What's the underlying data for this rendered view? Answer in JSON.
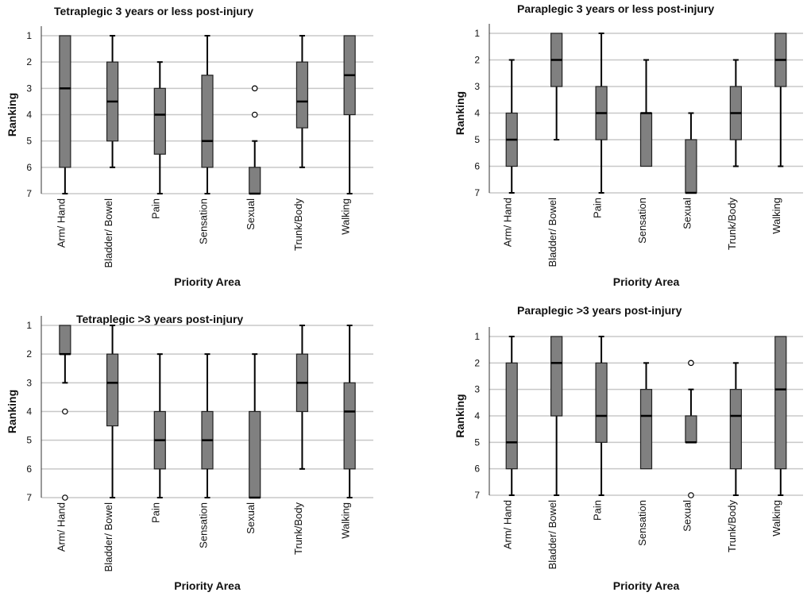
{
  "chart_data": [
    {
      "type": "box",
      "title": "Tetraplegic 3 years or less post-injury",
      "xlabel": "Priority Area",
      "ylabel": "Ranking",
      "y_ticks": [
        "1",
        "2",
        "3",
        "4",
        "5",
        "6",
        "7"
      ],
      "ylim": [
        7,
        1
      ],
      "categories": [
        "Arm/ Hand",
        "Bladder/ Bowel",
        "Pain",
        "Sensation",
        "Sexual",
        "Trunk/Body",
        "Walking"
      ],
      "boxes": [
        {
          "whisker_low": 1,
          "q1": 1,
          "median": 3,
          "q3": 6,
          "whisker_high": 7,
          "outliers": []
        },
        {
          "whisker_low": 1,
          "q1": 2,
          "median": 3.5,
          "q3": 5,
          "whisker_high": 6,
          "outliers": []
        },
        {
          "whisker_low": 2,
          "q1": 3,
          "median": 4,
          "q3": 5.5,
          "whisker_high": 7,
          "outliers": []
        },
        {
          "whisker_low": 1,
          "q1": 2.5,
          "median": 5,
          "q3": 6,
          "whisker_high": 7,
          "outliers": []
        },
        {
          "whisker_low": 5,
          "q1": 6,
          "median": 7,
          "q3": 7,
          "whisker_high": 7,
          "outliers": [
            3,
            4
          ]
        },
        {
          "whisker_low": 1,
          "q1": 2,
          "median": 3.5,
          "q3": 4.5,
          "whisker_high": 6,
          "outliers": []
        },
        {
          "whisker_low": 1,
          "q1": 1,
          "median": 2.5,
          "q3": 4,
          "whisker_high": 7,
          "outliers": []
        }
      ]
    },
    {
      "type": "box",
      "title": "Paraplegic 3 years or less post-injury",
      "xlabel": "Priority Area",
      "ylabel": "Ranking",
      "y_ticks": [
        "1",
        "2",
        "3",
        "4",
        "5",
        "6",
        "7"
      ],
      "ylim": [
        7,
        1
      ],
      "categories": [
        "Arm/ Hand",
        "Bladder/ Bowel",
        "Pain",
        "Sensation",
        "Sexual",
        "Trunk/Body",
        "Walking"
      ],
      "boxes": [
        {
          "whisker_low": 2,
          "q1": 4,
          "median": 5,
          "q3": 6,
          "whisker_high": 7,
          "outliers": []
        },
        {
          "whisker_low": 1,
          "q1": 1,
          "median": 2,
          "q3": 3,
          "whisker_high": 5,
          "outliers": []
        },
        {
          "whisker_low": 1,
          "q1": 3,
          "median": 4,
          "q3": 5,
          "whisker_high": 7,
          "outliers": []
        },
        {
          "whisker_low": 2,
          "q1": 4,
          "median": 4,
          "q3": 6,
          "whisker_high": 6,
          "outliers": []
        },
        {
          "whisker_low": 4,
          "q1": 5,
          "median": 7,
          "q3": 7,
          "whisker_high": 7,
          "outliers": []
        },
        {
          "whisker_low": 2,
          "q1": 3,
          "median": 4,
          "q3": 5,
          "whisker_high": 6,
          "outliers": []
        },
        {
          "whisker_low": 1,
          "q1": 1,
          "median": 2,
          "q3": 3,
          "whisker_high": 6,
          "outliers": []
        }
      ]
    },
    {
      "type": "box",
      "title": "Tetraplegic >3 years post-injury",
      "xlabel": "Priority Area",
      "ylabel": "Ranking",
      "y_ticks": [
        "1",
        "2",
        "3",
        "4",
        "5",
        "6",
        "7"
      ],
      "ylim": [
        7,
        1
      ],
      "categories": [
        "Arm/ Hand",
        "Bladder/ Bowel",
        "Pain",
        "Sensation",
        "Sexual",
        "Trunk/Body",
        "Walking"
      ],
      "boxes": [
        {
          "whisker_low": 1,
          "q1": 1,
          "median": 2,
          "q3": 2,
          "whisker_high": 3,
          "outliers": [
            4,
            7
          ]
        },
        {
          "whisker_low": 1,
          "q1": 2,
          "median": 3,
          "q3": 4.5,
          "whisker_high": 7,
          "outliers": []
        },
        {
          "whisker_low": 2,
          "q1": 4,
          "median": 5,
          "q3": 6,
          "whisker_high": 7,
          "outliers": []
        },
        {
          "whisker_low": 2,
          "q1": 4,
          "median": 5,
          "q3": 6,
          "whisker_high": 7,
          "outliers": []
        },
        {
          "whisker_low": 2,
          "q1": 4,
          "median": 7,
          "q3": 7,
          "whisker_high": 7,
          "outliers": []
        },
        {
          "whisker_low": 1,
          "q1": 2,
          "median": 3,
          "q3": 4,
          "whisker_high": 6,
          "outliers": []
        },
        {
          "whisker_low": 1,
          "q1": 3,
          "median": 4,
          "q3": 6,
          "whisker_high": 7,
          "outliers": []
        }
      ]
    },
    {
      "type": "box",
      "title": "Paraplegic >3 years post-injury",
      "xlabel": "Priority Area",
      "ylabel": "Ranking",
      "y_ticks": [
        "1",
        "2",
        "3",
        "4",
        "5",
        "6",
        "7"
      ],
      "ylim": [
        7,
        1
      ],
      "categories": [
        "Arm/ Hand",
        "Bladder/ Bowel",
        "Pain",
        "Sensation",
        "Sexual",
        "Trunk/Body",
        "Walking"
      ],
      "boxes": [
        {
          "whisker_low": 1,
          "q1": 2,
          "median": 5,
          "q3": 6,
          "whisker_high": 7,
          "outliers": []
        },
        {
          "whisker_low": 1,
          "q1": 1,
          "median": 2,
          "q3": 4,
          "whisker_high": 7,
          "outliers": []
        },
        {
          "whisker_low": 1,
          "q1": 2,
          "median": 4,
          "q3": 5,
          "whisker_high": 7,
          "outliers": []
        },
        {
          "whisker_low": 2,
          "q1": 3,
          "median": 4,
          "q3": 6,
          "whisker_high": 6,
          "outliers": []
        },
        {
          "whisker_low": 3,
          "q1": 4,
          "median": 5,
          "q3": 5,
          "whisker_high": 5,
          "outliers": [
            2,
            7
          ]
        },
        {
          "whisker_low": 2,
          "q1": 3,
          "median": 4,
          "q3": 6,
          "whisker_high": 7,
          "outliers": []
        },
        {
          "whisker_low": 1,
          "q1": 1,
          "median": 3,
          "q3": 6,
          "whisker_high": 7,
          "outliers": []
        }
      ]
    }
  ]
}
